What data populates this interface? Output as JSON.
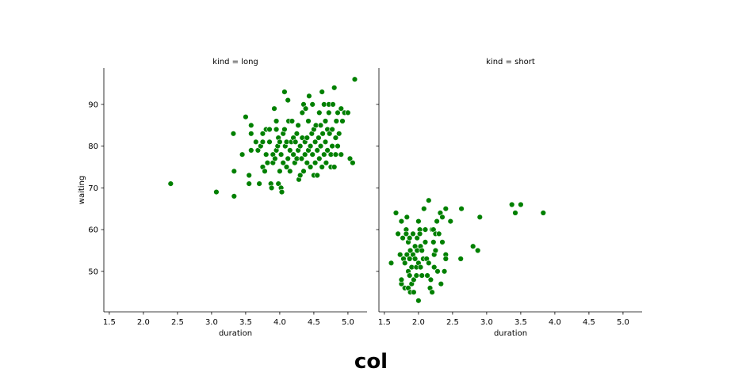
{
  "caption": "col",
  "chart_data": {
    "type": "scatter",
    "facet_variable": "kind",
    "shared_y": true,
    "grid": false,
    "xlabel": "duration",
    "ylabel": "waiting",
    "xlim": [
      1.42,
      5.28
    ],
    "ylim": [
      40.3,
      98.7
    ],
    "xticks": [
      1.5,
      2.0,
      2.5,
      3.0,
      3.5,
      4.0,
      4.5,
      5.0
    ],
    "xtick_labels": [
      "1.5",
      "2.0",
      "2.5",
      "3.0",
      "3.5",
      "4.0",
      "4.5",
      "5.0"
    ],
    "yticks": [
      50,
      60,
      70,
      80,
      90
    ],
    "ytick_labels": [
      "50",
      "60",
      "70",
      "80",
      "90"
    ],
    "marker_color": "#008000",
    "marker_edge_color": "#ffffff",
    "facets": [
      {
        "title": "kind = long",
        "points": [
          [
            2.4,
            71
          ],
          [
            3.07,
            69
          ],
          [
            3.33,
            68
          ],
          [
            3.33,
            74
          ],
          [
            3.32,
            83
          ],
          [
            3.45,
            78
          ],
          [
            3.5,
            87
          ],
          [
            3.55,
            71
          ],
          [
            3.55,
            73
          ],
          [
            3.58,
            79
          ],
          [
            3.58,
            83
          ],
          [
            3.58,
            85
          ],
          [
            3.65,
            81
          ],
          [
            3.68,
            79
          ],
          [
            3.7,
            71
          ],
          [
            3.72,
            80
          ],
          [
            3.75,
            81
          ],
          [
            3.75,
            83
          ],
          [
            3.75,
            75
          ],
          [
            3.78,
            74
          ],
          [
            3.8,
            84
          ],
          [
            3.8,
            78
          ],
          [
            3.82,
            76
          ],
          [
            3.85,
            81
          ],
          [
            3.85,
            84
          ],
          [
            3.87,
            71
          ],
          [
            3.88,
            70
          ],
          [
            3.9,
            78
          ],
          [
            3.9,
            76
          ],
          [
            3.92,
            89
          ],
          [
            3.93,
            77
          ],
          [
            3.95,
            84
          ],
          [
            3.95,
            86
          ],
          [
            3.95,
            79
          ],
          [
            3.97,
            80
          ],
          [
            3.98,
            82
          ],
          [
            3.98,
            71
          ],
          [
            4.0,
            81
          ],
          [
            4.0,
            74
          ],
          [
            4.02,
            78
          ],
          [
            4.02,
            70
          ],
          [
            4.03,
            69
          ],
          [
            4.05,
            76
          ],
          [
            4.05,
            83
          ],
          [
            4.07,
            93
          ],
          [
            4.07,
            84
          ],
          [
            4.08,
            80
          ],
          [
            4.1,
            81
          ],
          [
            4.1,
            75
          ],
          [
            4.12,
            91
          ],
          [
            4.12,
            77
          ],
          [
            4.13,
            86
          ],
          [
            4.15,
            79
          ],
          [
            4.15,
            74
          ],
          [
            4.17,
            81
          ],
          [
            4.18,
            86
          ],
          [
            4.2,
            78
          ],
          [
            4.2,
            82
          ],
          [
            4.22,
            76
          ],
          [
            4.23,
            81
          ],
          [
            4.25,
            83
          ],
          [
            4.25,
            77
          ],
          [
            4.27,
            79
          ],
          [
            4.27,
            85
          ],
          [
            4.28,
            72
          ],
          [
            4.3,
            73
          ],
          [
            4.3,
            80
          ],
          [
            4.32,
            77
          ],
          [
            4.33,
            82
          ],
          [
            4.33,
            88
          ],
          [
            4.35,
            90
          ],
          [
            4.35,
            74
          ],
          [
            4.37,
            78
          ],
          [
            4.37,
            81
          ],
          [
            4.38,
            89
          ],
          [
            4.4,
            82
          ],
          [
            4.4,
            76
          ],
          [
            4.42,
            86
          ],
          [
            4.42,
            79
          ],
          [
            4.43,
            92
          ],
          [
            4.45,
            80
          ],
          [
            4.45,
            75
          ],
          [
            4.47,
            83
          ],
          [
            4.48,
            90
          ],
          [
            4.48,
            78
          ],
          [
            4.5,
            73
          ],
          [
            4.5,
            84
          ],
          [
            4.52,
            76
          ],
          [
            4.52,
            81
          ],
          [
            4.53,
            85
          ],
          [
            4.55,
            79
          ],
          [
            4.55,
            73
          ],
          [
            4.57,
            82
          ],
          [
            4.58,
            88
          ],
          [
            4.58,
            77
          ],
          [
            4.6,
            85
          ],
          [
            4.6,
            80
          ],
          [
            4.62,
            93
          ],
          [
            4.62,
            75
          ],
          [
            4.63,
            83
          ],
          [
            4.65,
            78
          ],
          [
            4.65,
            90
          ],
          [
            4.67,
            81
          ],
          [
            4.67,
            86
          ],
          [
            4.68,
            76
          ],
          [
            4.7,
            84
          ],
          [
            4.7,
            79
          ],
          [
            4.72,
            90
          ],
          [
            4.72,
            88
          ],
          [
            4.73,
            83
          ],
          [
            4.75,
            75
          ],
          [
            4.75,
            78
          ],
          [
            4.77,
            80
          ],
          [
            4.77,
            84
          ],
          [
            4.78,
            90
          ],
          [
            4.8,
            94
          ],
          [
            4.8,
            75
          ],
          [
            4.82,
            82
          ],
          [
            4.82,
            78
          ],
          [
            4.83,
            86
          ],
          [
            4.85,
            80
          ],
          [
            4.85,
            88
          ],
          [
            4.87,
            83
          ],
          [
            4.9,
            89
          ],
          [
            4.9,
            78
          ],
          [
            4.92,
            86
          ],
          [
            4.95,
            88
          ],
          [
            5.0,
            88
          ],
          [
            5.03,
            77
          ],
          [
            5.07,
            76
          ],
          [
            5.1,
            96
          ]
        ]
      },
      {
        "title": "kind = short",
        "points": [
          [
            1.6,
            52
          ],
          [
            1.67,
            64
          ],
          [
            1.7,
            59
          ],
          [
            1.73,
            54
          ],
          [
            1.75,
            47
          ],
          [
            1.75,
            48
          ],
          [
            1.75,
            62
          ],
          [
            1.77,
            58
          ],
          [
            1.78,
            53
          ],
          [
            1.8,
            46
          ],
          [
            1.8,
            52
          ],
          [
            1.82,
            60
          ],
          [
            1.82,
            59
          ],
          [
            1.83,
            54
          ],
          [
            1.83,
            63
          ],
          [
            1.85,
            57
          ],
          [
            1.85,
            50
          ],
          [
            1.85,
            46
          ],
          [
            1.87,
            49
          ],
          [
            1.87,
            53
          ],
          [
            1.87,
            58
          ],
          [
            1.88,
            55
          ],
          [
            1.88,
            45
          ],
          [
            1.9,
            51
          ],
          [
            1.9,
            47
          ],
          [
            1.92,
            54
          ],
          [
            1.92,
            59
          ],
          [
            1.93,
            48
          ],
          [
            1.93,
            45
          ],
          [
            1.95,
            53
          ],
          [
            1.95,
            56
          ],
          [
            1.97,
            51
          ],
          [
            1.97,
            49
          ],
          [
            1.98,
            58
          ],
          [
            1.98,
            55
          ],
          [
            2.0,
            62
          ],
          [
            2.0,
            52
          ],
          [
            2.0,
            43
          ],
          [
            2.02,
            60
          ],
          [
            2.02,
            59
          ],
          [
            2.03,
            56
          ],
          [
            2.03,
            51
          ],
          [
            2.05,
            55
          ],
          [
            2.05,
            49
          ],
          [
            2.07,
            53
          ],
          [
            2.08,
            65
          ],
          [
            2.1,
            57
          ],
          [
            2.1,
            60
          ],
          [
            2.12,
            53
          ],
          [
            2.13,
            49
          ],
          [
            2.15,
            67
          ],
          [
            2.15,
            52
          ],
          [
            2.17,
            46
          ],
          [
            2.18,
            48
          ],
          [
            2.2,
            60
          ],
          [
            2.2,
            45
          ],
          [
            2.22,
            57
          ],
          [
            2.22,
            60
          ],
          [
            2.23,
            54
          ],
          [
            2.23,
            51
          ],
          [
            2.25,
            59
          ],
          [
            2.25,
            55
          ],
          [
            2.27,
            62
          ],
          [
            2.28,
            50
          ],
          [
            2.3,
            59
          ],
          [
            2.32,
            64
          ],
          [
            2.33,
            47
          ],
          [
            2.35,
            57
          ],
          [
            2.35,
            63
          ],
          [
            2.38,
            50
          ],
          [
            2.4,
            65
          ],
          [
            2.4,
            54
          ],
          [
            2.4,
            53
          ],
          [
            2.47,
            62
          ],
          [
            2.62,
            53
          ],
          [
            2.63,
            65
          ],
          [
            2.8,
            56
          ],
          [
            2.87,
            55
          ],
          [
            2.9,
            63
          ],
          [
            3.37,
            66
          ],
          [
            3.42,
            64
          ],
          [
            3.5,
            66
          ],
          [
            3.83,
            64
          ]
        ]
      }
    ]
  }
}
